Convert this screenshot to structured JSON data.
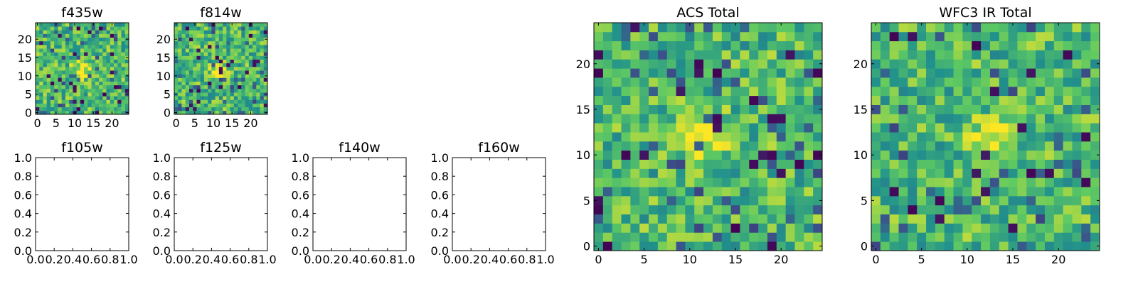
{
  "figure": {
    "background": "#ffffff",
    "colormap": [
      "#440154",
      "#3b528b",
      "#21918c",
      "#5ec962",
      "#fde725"
    ]
  },
  "chart_data": [
    {
      "type": "heatmap",
      "title": "f435w",
      "xlim": [
        -0.5,
        24.5
      ],
      "ylim": [
        -0.5,
        24.5
      ],
      "xticks": [
        0,
        5,
        10,
        15,
        20
      ],
      "yticks": [
        0,
        5,
        10,
        15,
        20
      ],
      "grid_shape": [
        25,
        25
      ],
      "pixel_range": [
        0,
        1
      ],
      "seed": 11,
      "bright_center": [
        12,
        12
      ],
      "notes": "noise image, mostly green/yellow with scattered dark pixels"
    },
    {
      "type": "heatmap",
      "title": "f814w",
      "xlim": [
        -0.5,
        24.5
      ],
      "ylim": [
        -0.5,
        24.5
      ],
      "xticks": [
        0,
        5,
        10,
        15,
        20
      ],
      "yticks": [
        0,
        5,
        10,
        15,
        20
      ],
      "grid_shape": [
        25,
        25
      ],
      "pixel_range": [
        0,
        1
      ],
      "seed": 23,
      "bright_center": [
        12,
        11
      ]
    },
    {
      "type": "empty",
      "title": "f105w",
      "xlim": [
        0,
        1
      ],
      "ylim": [
        0,
        1
      ],
      "xticks": [
        "0.0",
        "0.2",
        "0.4",
        "0.6",
        "0.8",
        "1.0"
      ],
      "yticks": [
        "0.0",
        "0.2",
        "0.4",
        "0.6",
        "0.8",
        "1.0"
      ]
    },
    {
      "type": "empty",
      "title": "f125w",
      "xlim": [
        0,
        1
      ],
      "ylim": [
        0,
        1
      ],
      "xticks": [
        "0.0",
        "0.2",
        "0.4",
        "0.6",
        "0.8",
        "1.0"
      ],
      "yticks": [
        "0.0",
        "0.2",
        "0.4",
        "0.6",
        "0.8",
        "1.0"
      ]
    },
    {
      "type": "empty",
      "title": "f140w",
      "xlim": [
        0,
        1
      ],
      "ylim": [
        0,
        1
      ],
      "xticks": [
        "0.0",
        "0.2",
        "0.4",
        "0.6",
        "0.8",
        "1.0"
      ],
      "yticks": [
        "0.0",
        "0.2",
        "0.4",
        "0.6",
        "0.8",
        "1.0"
      ]
    },
    {
      "type": "empty",
      "title": "f160w",
      "xlim": [
        0,
        1
      ],
      "ylim": [
        0,
        1
      ],
      "xticks": [
        "0.0",
        "0.2",
        "0.4",
        "0.6",
        "0.8",
        "1.0"
      ],
      "yticks": [
        "0.0",
        "0.2",
        "0.4",
        "0.6",
        "0.8",
        "1.0"
      ]
    },
    {
      "type": "heatmap",
      "title": "ACS Total",
      "xlim": [
        -0.5,
        24.5
      ],
      "ylim": [
        -0.5,
        24.5
      ],
      "xticks": [
        0,
        5,
        10,
        15,
        20
      ],
      "yticks": [
        0,
        5,
        10,
        15,
        20
      ],
      "grid_shape": [
        25,
        25
      ],
      "pixel_range": [
        0,
        1
      ],
      "seed": 37,
      "bright_center": [
        12,
        12
      ]
    },
    {
      "type": "heatmap",
      "title": "WFC3 IR Total",
      "xlim": [
        -0.5,
        24.5
      ],
      "ylim": [
        -0.5,
        24.5
      ],
      "xticks": [
        0,
        5,
        10,
        15,
        20
      ],
      "yticks": [
        0,
        5,
        10,
        15,
        20
      ],
      "grid_shape": [
        25,
        25
      ],
      "pixel_range": [
        0,
        1
      ],
      "seed": 53,
      "bright_center": [
        13,
        12
      ]
    }
  ]
}
